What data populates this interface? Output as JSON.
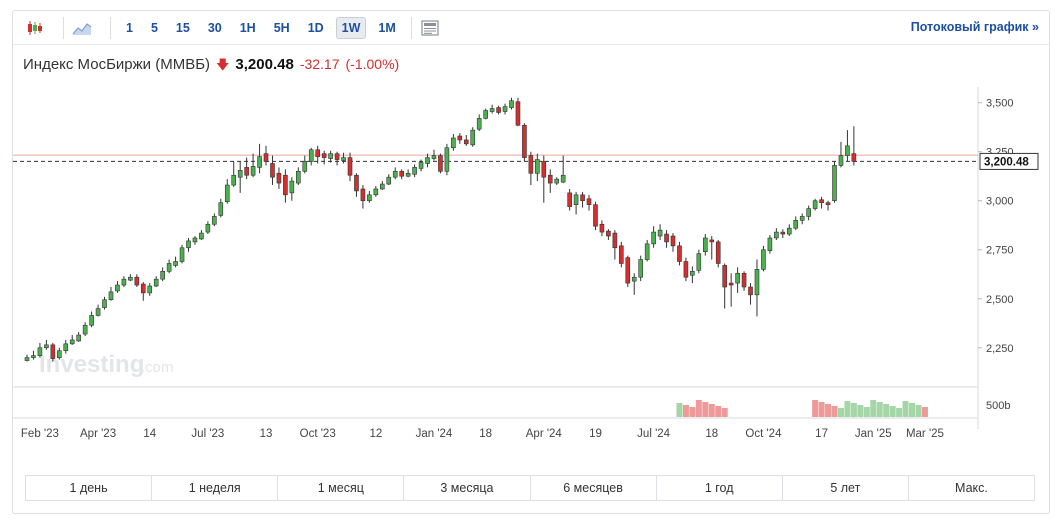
{
  "toolbar": {
    "icons": [
      "candlestick-icon",
      "area-chart-icon",
      "news-icon"
    ],
    "timeframes": [
      "1",
      "5",
      "15",
      "30",
      "1H",
      "5H",
      "1D",
      "1W",
      "1M"
    ],
    "active_timeframe": "1W",
    "stream_link": "Потоковый график »"
  },
  "quote": {
    "name": "Индекс МосБиржи (ММВБ)",
    "price": "3,200.48",
    "change": "-32.17",
    "change_pct": "(-1.00%)"
  },
  "colors": {
    "up": "#4caf50",
    "down": "#d32f2f",
    "up_volume": "#a5d6a7",
    "down_volume": "#ef9a9a",
    "accent": "#1d4fa3"
  },
  "watermark": "Investing",
  "watermark_suffix": ".com",
  "chart_data": {
    "type": "candlestick",
    "ylim": [
      2050,
      3580
    ],
    "y_ticks": [
      2250,
      2500,
      2750,
      3000,
      3250,
      3500
    ],
    "y_tick_labels": [
      "2,250",
      "2,500",
      "2,750",
      "3,000",
      "3,250",
      "3,500"
    ],
    "last_price": 3200.48,
    "last_price_label": "3,200.48",
    "ref_line": 3232.65,
    "volume_label": "500b",
    "x_labels": [
      "Feb '23",
      "Apr '23",
      "14",
      "Jul '23",
      "13",
      "Oct '23",
      "12",
      "Jan '24",
      "18",
      "Apr '24",
      "19",
      "Jul '24",
      "18",
      "Oct '24",
      "17",
      "Jan '25",
      "Mar '25"
    ],
    "x_label_index": [
      2,
      11,
      19,
      28,
      37,
      45,
      54,
      63,
      71,
      80,
      88,
      97,
      106,
      114,
      123,
      131,
      139
    ],
    "candles": [
      [
        2200,
        2185,
        2215,
        2180
      ],
      [
        2210,
        2200,
        2235,
        2190
      ],
      [
        2250,
        2210,
        2275,
        2200
      ],
      [
        2265,
        2250,
        2290,
        2240
      ],
      [
        2195,
        2265,
        2275,
        2180
      ],
      [
        2235,
        2200,
        2250,
        2190
      ],
      [
        2270,
        2235,
        2290,
        2220
      ],
      [
        2290,
        2270,
        2315,
        2265
      ],
      [
        2315,
        2285,
        2330,
        2280
      ],
      [
        2365,
        2320,
        2380,
        2310
      ],
      [
        2415,
        2365,
        2435,
        2355
      ],
      [
        2450,
        2415,
        2470,
        2410
      ],
      [
        2495,
        2455,
        2510,
        2445
      ],
      [
        2535,
        2495,
        2560,
        2490
      ],
      [
        2570,
        2540,
        2590,
        2530
      ],
      [
        2600,
        2570,
        2615,
        2560
      ],
      [
        2610,
        2595,
        2625,
        2590
      ],
      [
        2570,
        2610,
        2625,
        2560
      ],
      [
        2530,
        2575,
        2585,
        2490
      ],
      [
        2565,
        2530,
        2580,
        2515
      ],
      [
        2600,
        2565,
        2615,
        2560
      ],
      [
        2640,
        2600,
        2660,
        2590
      ],
      [
        2680,
        2640,
        2700,
        2630
      ],
      [
        2690,
        2670,
        2715,
        2660
      ],
      [
        2760,
        2690,
        2775,
        2680
      ],
      [
        2795,
        2760,
        2810,
        2740
      ],
      [
        2810,
        2790,
        2820,
        2775
      ],
      [
        2835,
        2805,
        2850,
        2800
      ],
      [
        2880,
        2840,
        2895,
        2830
      ],
      [
        2920,
        2880,
        2935,
        2870
      ],
      [
        2990,
        2925,
        3010,
        2915
      ],
      [
        3080,
        2995,
        3110,
        2985
      ],
      [
        3130,
        3080,
        3200,
        3070
      ],
      [
        3155,
        3120,
        3200,
        3040
      ],
      [
        3130,
        3170,
        3220,
        3110
      ],
      [
        3175,
        3130,
        3240,
        3120
      ],
      [
        3225,
        3170,
        3290,
        3140
      ],
      [
        3200,
        3240,
        3280,
        3180
      ],
      [
        3120,
        3190,
        3230,
        3080
      ],
      [
        3090,
        3140,
        3170,
        3060
      ],
      [
        3030,
        3130,
        3160,
        2990
      ],
      [
        3100,
        3040,
        3120,
        3000
      ],
      [
        3150,
        3090,
        3170,
        3080
      ],
      [
        3200,
        3150,
        3230,
        3140
      ],
      [
        3260,
        3200,
        3270,
        3180
      ],
      [
        3225,
        3260,
        3280,
        3190
      ],
      [
        3220,
        3240,
        3255,
        3185
      ],
      [
        3240,
        3215,
        3255,
        3195
      ],
      [
        3210,
        3240,
        3250,
        3180
      ],
      [
        3220,
        3205,
        3245,
        3190
      ],
      [
        3130,
        3220,
        3245,
        3100
      ],
      [
        3050,
        3130,
        3140,
        3020
      ],
      [
        3000,
        3060,
        3080,
        2960
      ],
      [
        3030,
        3000,
        3050,
        2990
      ],
      [
        3060,
        3030,
        3075,
        3020
      ],
      [
        3085,
        3060,
        3100,
        3055
      ],
      [
        3120,
        3085,
        3135,
        3080
      ],
      [
        3150,
        3120,
        3170,
        3110
      ],
      [
        3125,
        3150,
        3160,
        3110
      ],
      [
        3140,
        3125,
        3160,
        3120
      ],
      [
        3170,
        3135,
        3185,
        3120
      ],
      [
        3195,
        3165,
        3210,
        3150
      ],
      [
        3220,
        3190,
        3240,
        3170
      ],
      [
        3230,
        3215,
        3260,
        3205
      ],
      [
        3150,
        3230,
        3240,
        3140
      ],
      [
        3270,
        3150,
        3290,
        3130
      ],
      [
        3320,
        3270,
        3340,
        3255
      ],
      [
        3310,
        3330,
        3345,
        3290
      ],
      [
        3290,
        3310,
        3335,
        3280
      ],
      [
        3360,
        3285,
        3375,
        3275
      ],
      [
        3420,
        3365,
        3440,
        3355
      ],
      [
        3460,
        3420,
        3470,
        3415
      ],
      [
        3470,
        3455,
        3490,
        3445
      ],
      [
        3450,
        3475,
        3485,
        3440
      ],
      [
        3480,
        3455,
        3495,
        3440
      ],
      [
        3510,
        3475,
        3525,
        3465
      ],
      [
        3385,
        3505,
        3525,
        3380
      ],
      [
        3220,
        3385,
        3395,
        3200
      ],
      [
        3140,
        3230,
        3250,
        3080
      ],
      [
        3210,
        3140,
        3240,
        3100
      ],
      [
        3120,
        3200,
        3230,
        2990
      ],
      [
        3090,
        3130,
        3160,
        3040
      ],
      [
        3110,
        3090,
        3120,
        3080
      ],
      [
        3130,
        3095,
        3230,
        3090
      ],
      [
        2970,
        3040,
        3060,
        2950
      ],
      [
        3030,
        2980,
        3045,
        2930
      ],
      [
        3000,
        3030,
        3045,
        2965
      ],
      [
        2980,
        3010,
        3030,
        2950
      ],
      [
        2870,
        2980,
        2995,
        2850
      ],
      [
        2840,
        2880,
        2900,
        2820
      ],
      [
        2820,
        2845,
        2855,
        2800
      ],
      [
        2760,
        2835,
        2850,
        2700
      ],
      [
        2680,
        2770,
        2790,
        2660
      ],
      [
        2580,
        2710,
        2720,
        2560
      ],
      [
        2610,
        2590,
        2630,
        2520
      ],
      [
        2700,
        2610,
        2720,
        2590
      ],
      [
        2780,
        2700,
        2800,
        2690
      ],
      [
        2840,
        2780,
        2870,
        2760
      ],
      [
        2850,
        2820,
        2880,
        2800
      ],
      [
        2790,
        2830,
        2850,
        2760
      ],
      [
        2770,
        2820,
        2835,
        2740
      ],
      [
        2690,
        2770,
        2790,
        2670
      ],
      [
        2610,
        2690,
        2710,
        2590
      ],
      [
        2640,
        2620,
        2665,
        2580
      ],
      [
        2730,
        2645,
        2750,
        2630
      ],
      [
        2810,
        2740,
        2830,
        2720
      ],
      [
        2790,
        2800,
        2820,
        2700
      ],
      [
        2680,
        2790,
        2800,
        2660
      ],
      [
        2560,
        2670,
        2680,
        2450
      ],
      [
        2570,
        2580,
        2630,
        2460
      ],
      [
        2630,
        2580,
        2660,
        2530
      ],
      [
        2560,
        2630,
        2640,
        2540
      ],
      [
        2520,
        2560,
        2580,
        2470
      ],
      [
        2650,
        2520,
        2700,
        2410
      ],
      [
        2750,
        2650,
        2770,
        2640
      ],
      [
        2810,
        2745,
        2825,
        2730
      ],
      [
        2840,
        2810,
        2860,
        2800
      ],
      [
        2830,
        2840,
        2855,
        2810
      ],
      [
        2860,
        2830,
        2880,
        2820
      ],
      [
        2900,
        2860,
        2920,
        2850
      ],
      [
        2920,
        2900,
        2935,
        2880
      ],
      [
        2960,
        2920,
        2975,
        2900
      ],
      [
        3000,
        2960,
        3010,
        2950
      ],
      [
        2990,
        3005,
        3020,
        2960
      ],
      [
        2980,
        2990,
        3000,
        2950
      ],
      [
        3180,
        3000,
        3200,
        2990
      ],
      [
        3230,
        3180,
        3300,
        3170
      ],
      [
        3280,
        3230,
        3360,
        3200
      ],
      [
        3200,
        3240,
        3380,
        3180
      ]
    ],
    "volumes": [
      [
        101,
        "up"
      ],
      [
        102,
        "down"
      ],
      [
        103,
        "down"
      ],
      [
        104,
        "down"
      ],
      [
        105,
        "down"
      ],
      [
        106,
        "down"
      ],
      [
        107,
        "down"
      ],
      [
        108,
        "down"
      ],
      [
        122,
        "down"
      ],
      [
        123,
        "down"
      ],
      [
        124,
        "down"
      ],
      [
        125,
        "down"
      ],
      [
        126,
        "up"
      ],
      [
        127,
        "up"
      ],
      [
        128,
        "up"
      ],
      [
        129,
        "up"
      ],
      [
        130,
        "up"
      ],
      [
        131,
        "up"
      ],
      [
        132,
        "up"
      ],
      [
        133,
        "up"
      ],
      [
        134,
        "up"
      ],
      [
        135,
        "up"
      ],
      [
        136,
        "up"
      ],
      [
        137,
        "up"
      ],
      [
        138,
        "up"
      ],
      [
        139,
        "down"
      ]
    ]
  },
  "ranges": [
    "1 день",
    "1 неделя",
    "1 месяц",
    "3 месяца",
    "6 месяцев",
    "1 год",
    "5 лет",
    "Макс."
  ]
}
